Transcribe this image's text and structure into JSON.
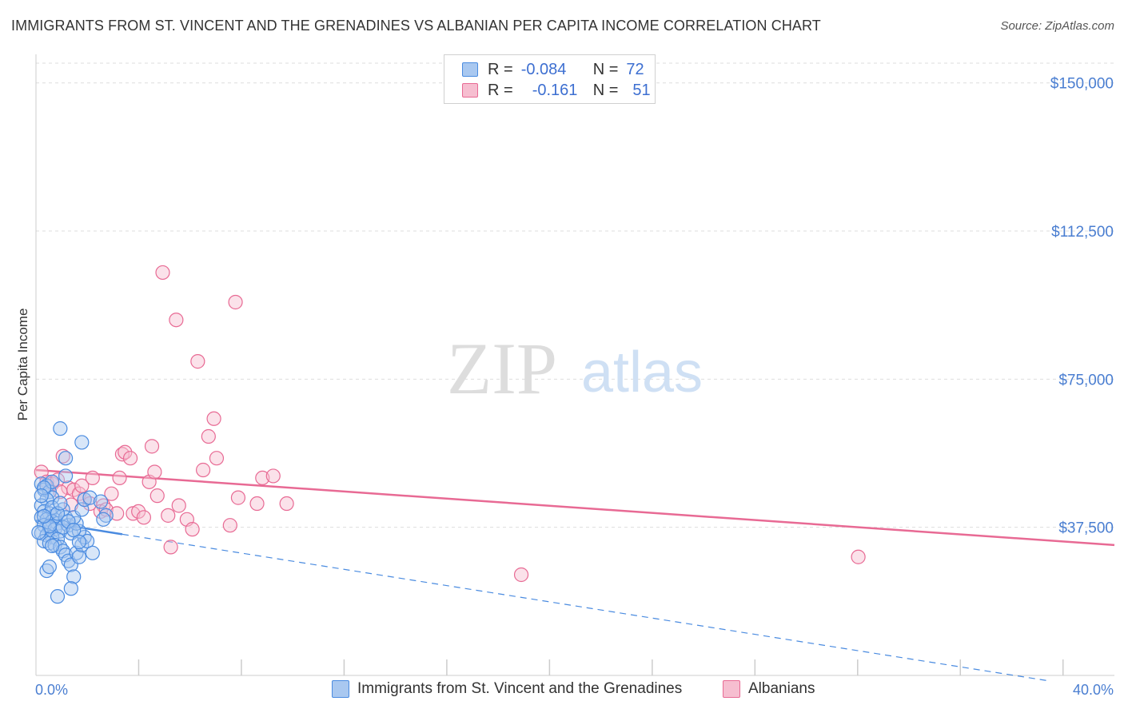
{
  "title": "IMMIGRANTS FROM ST. VINCENT AND THE GRENADINES VS ALBANIAN PER CAPITA INCOME CORRELATION CHART",
  "source": "Source: ZipAtlas.com",
  "colors": {
    "blue": "#4a8be0",
    "blue_fill": "#a9c8f0",
    "pink": "#e86a94",
    "pink_fill": "#f6bed0",
    "axis_label": "#4a7ed1",
    "grid": "#dddddd"
  },
  "legend": {
    "r_label": "R =",
    "n_label": "N =",
    "rows": [
      {
        "r": "-0.084",
        "n": "72",
        "color": "#4a8be0"
      },
      {
        "r": "-0.161",
        "n": "51",
        "color": "#e86a94"
      }
    ]
  },
  "bottom_legend": [
    {
      "label": "Immigrants from St. Vincent and the Grenadines",
      "color": "#4a8be0"
    },
    {
      "label": "Albanians",
      "color": "#e86a94"
    }
  ],
  "watermark": {
    "zip": "ZIP",
    "atlas": "atlas"
  },
  "chart_data": {
    "type": "scatter",
    "title": "IMMIGRANTS FROM ST. VINCENT AND THE GRENADINES VS ALBANIAN PER CAPITA INCOME CORRELATION CHART",
    "xlabel": "",
    "ylabel": "Per Capita Income",
    "xlim": [
      0,
      40
    ],
    "ylim": [
      0,
      155000
    ],
    "x_tick_labels": [
      {
        "value": 0,
        "label": "0.0%"
      },
      {
        "value": 40,
        "label": "40.0%"
      }
    ],
    "y_tick_labels": [
      {
        "value": 37500,
        "label": "$37,500"
      },
      {
        "value": 75000,
        "label": "$75,000"
      },
      {
        "value": 112500,
        "label": "$112,500"
      },
      {
        "value": 150000,
        "label": "$150,000"
      }
    ],
    "series": [
      {
        "name": "Immigrants from St. Vincent and the Grenadines",
        "color": "#4a8be0",
        "r": -0.084,
        "n": 72,
        "trend": {
          "x_solid": [
            0,
            3.2
          ],
          "x_dashed_end": 37.5,
          "y_at_0": 39200,
          "slope_per_pct": -1080
        },
        "points": [
          [
            0.2,
            48500
          ],
          [
            0.3,
            47000
          ],
          [
            0.4,
            48000
          ],
          [
            0.5,
            46500
          ],
          [
            0.6,
            45000
          ],
          [
            0.4,
            44500
          ],
          [
            0.2,
            43000
          ],
          [
            0.3,
            41500
          ],
          [
            0.5,
            41000
          ],
          [
            0.7,
            40500
          ],
          [
            0.2,
            40000
          ],
          [
            0.4,
            39500
          ],
          [
            0.6,
            39000
          ],
          [
            0.8,
            38500
          ],
          [
            0.3,
            38000
          ],
          [
            0.5,
            37500
          ],
          [
            0.7,
            37000
          ],
          [
            0.9,
            36500
          ],
          [
            0.2,
            36000
          ],
          [
            0.4,
            35500
          ],
          [
            0.6,
            35000
          ],
          [
            0.8,
            34500
          ],
          [
            0.3,
            34000
          ],
          [
            0.5,
            33500
          ],
          [
            0.7,
            33000
          ],
          [
            0.9,
            32500
          ],
          [
            1.0,
            42000
          ],
          [
            1.1,
            40000
          ],
          [
            1.2,
            38000
          ],
          [
            1.3,
            36000
          ],
          [
            1.0,
            31500
          ],
          [
            1.1,
            30500
          ],
          [
            1.2,
            29000
          ],
          [
            1.3,
            28000
          ],
          [
            1.4,
            25000
          ],
          [
            0.4,
            26500
          ],
          [
            0.5,
            27500
          ],
          [
            0.8,
            20000
          ],
          [
            1.3,
            22000
          ],
          [
            1.5,
            31000
          ],
          [
            1.6,
            30000
          ],
          [
            1.7,
            33000
          ],
          [
            1.8,
            35000
          ],
          [
            1.6,
            36500
          ],
          [
            1.5,
            38500
          ],
          [
            1.4,
            40000
          ],
          [
            1.7,
            42000
          ],
          [
            1.8,
            44500
          ],
          [
            2.0,
            45000
          ],
          [
            2.4,
            44000
          ],
          [
            2.6,
            40500
          ],
          [
            2.5,
            39500
          ],
          [
            1.9,
            34000
          ],
          [
            2.1,
            31000
          ],
          [
            0.9,
            62500
          ],
          [
            1.7,
            59000
          ],
          [
            1.1,
            55000
          ],
          [
            1.1,
            50500
          ],
          [
            0.6,
            49000
          ],
          [
            0.3,
            47500
          ],
          [
            0.2,
            45500
          ],
          [
            0.6,
            42500
          ],
          [
            0.8,
            41000
          ],
          [
            1.0,
            37500
          ],
          [
            1.2,
            39000
          ],
          [
            0.5,
            37800
          ],
          [
            0.1,
            36200
          ],
          [
            0.3,
            40300
          ],
          [
            0.9,
            43600
          ],
          [
            1.4,
            36800
          ],
          [
            1.6,
            33800
          ],
          [
            0.6,
            32800
          ]
        ]
      },
      {
        "name": "Albanians",
        "color": "#e86a94",
        "r": -0.161,
        "n": 51,
        "trend": {
          "x_start": 0,
          "x_end": 40,
          "y_start": 52000,
          "y_end": 33000
        },
        "points": [
          [
            0.2,
            51500
          ],
          [
            0.4,
            49000
          ],
          [
            0.6,
            48500
          ],
          [
            0.8,
            49500
          ],
          [
            1.0,
            55500
          ],
          [
            1.2,
            47500
          ],
          [
            1.4,
            47000
          ],
          [
            1.6,
            46000
          ],
          [
            1.7,
            48000
          ],
          [
            1.8,
            44500
          ],
          [
            2.0,
            43500
          ],
          [
            2.1,
            50000
          ],
          [
            2.5,
            43000
          ],
          [
            2.4,
            41500
          ],
          [
            2.6,
            42000
          ],
          [
            2.8,
            46000
          ],
          [
            3.0,
            41000
          ],
          [
            3.1,
            50000
          ],
          [
            3.2,
            56000
          ],
          [
            3.3,
            56500
          ],
          [
            3.5,
            55000
          ],
          [
            3.6,
            41000
          ],
          [
            3.8,
            41500
          ],
          [
            4.0,
            40000
          ],
          [
            4.2,
            49000
          ],
          [
            4.3,
            58000
          ],
          [
            4.4,
            51500
          ],
          [
            4.5,
            45500
          ],
          [
            4.7,
            102000
          ],
          [
            4.9,
            40500
          ],
          [
            5.0,
            32500
          ],
          [
            5.2,
            90000
          ],
          [
            5.3,
            43000
          ],
          [
            5.6,
            39500
          ],
          [
            5.8,
            37000
          ],
          [
            6.0,
            79500
          ],
          [
            6.2,
            52000
          ],
          [
            6.4,
            60500
          ],
          [
            6.6,
            65000
          ],
          [
            6.7,
            55000
          ],
          [
            7.2,
            38000
          ],
          [
            7.4,
            94500
          ],
          [
            7.5,
            45000
          ],
          [
            8.2,
            43500
          ],
          [
            8.4,
            50000
          ],
          [
            8.8,
            50500
          ],
          [
            9.3,
            43500
          ],
          [
            18.0,
            25500
          ],
          [
            30.5,
            30000
          ],
          [
            0.9,
            46500
          ],
          [
            1.3,
            43200
          ]
        ]
      }
    ]
  }
}
